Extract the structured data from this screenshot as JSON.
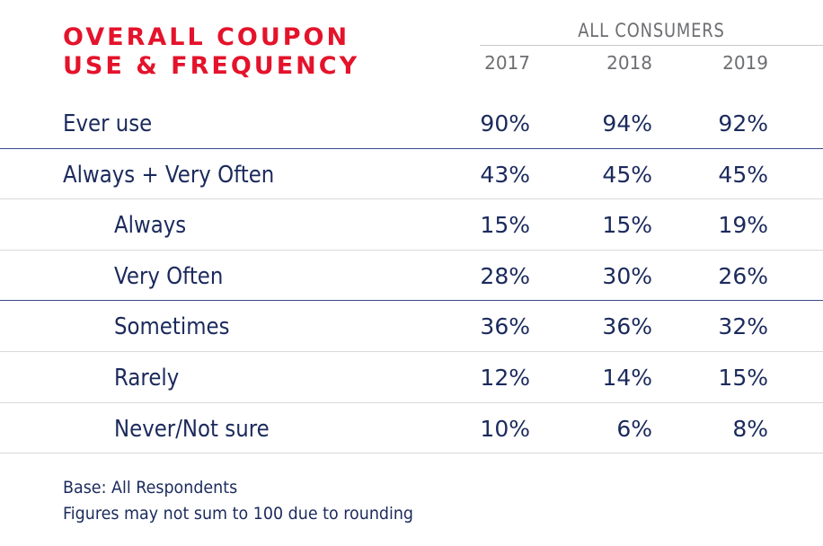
{
  "chart_data": {
    "type": "table",
    "title": [
      "OVERALL COUPON",
      "USE & FREQUENCY"
    ],
    "column_group": "ALL CONSUMERS",
    "columns": [
      "2017",
      "2018",
      "2019"
    ],
    "rows": [
      {
        "label": "Ever use",
        "values": [
          "90%",
          "94%",
          "92%"
        ],
        "indent": false
      },
      {
        "label": "Always + Very Often",
        "values": [
          "43%",
          "45%",
          "45%"
        ],
        "indent": false
      },
      {
        "label": "Always",
        "values": [
          "15%",
          "15%",
          "19%"
        ],
        "indent": true
      },
      {
        "label": "Very Often",
        "values": [
          "28%",
          "30%",
          "26%"
        ],
        "indent": true
      },
      {
        "label": "Sometimes",
        "values": [
          "36%",
          "36%",
          "32%"
        ],
        "indent": true
      },
      {
        "label": "Rarely",
        "values": [
          "12%",
          "14%",
          "15%"
        ],
        "indent": true
      },
      {
        "label": "Never/Not sure",
        "values": [
          "10%",
          "6%",
          "8%"
        ],
        "indent": true
      }
    ],
    "notes": [
      "Base: All Respondents",
      "Figures may not sum to 100 due to rounding"
    ],
    "colors": {
      "title": "#e4132b",
      "text": "#1b2a5c",
      "header": "#6d6e71",
      "accent_rule": "#3c4a8c",
      "rule": "#d9d9d9"
    }
  }
}
